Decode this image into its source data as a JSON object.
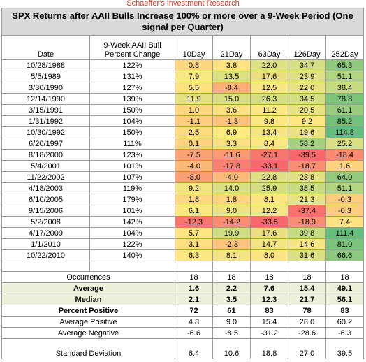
{
  "brand": "Schaeffer's Investment Research",
  "title": "SPX Returns after AAII Bulls Increase 100% or more over a 9-Week Period (One signal per Quarter)",
  "headers": {
    "date": "Date",
    "pct": "9-Week AAII Bull Percent Change",
    "cols": [
      "10Day",
      "21Day",
      "63Day",
      "126Day",
      "252Day"
    ]
  },
  "rows": [
    {
      "date": "10/28/1988",
      "pct": "122%",
      "v": [
        "0.8",
        "3.8",
        "22.0",
        "34.7",
        "65.3"
      ],
      "c": [
        "#fed580",
        "#fee282",
        "#dde083",
        "#d5de82",
        "#8ec97e"
      ]
    },
    {
      "date": "5/5/1989",
      "pct": "131%",
      "v": [
        "7.9",
        "13.5",
        "17.6",
        "23.9",
        "51.1"
      ],
      "c": [
        "#f8e984",
        "#dde081",
        "#ecdf82",
        "#e0e084",
        "#b2d680"
      ]
    },
    {
      "date": "3/30/1990",
      "pct": "127%",
      "v": [
        "5.5",
        "-8.4",
        "12.5",
        "22.0",
        "38.4"
      ],
      "c": [
        "#fee282",
        "#fcae76",
        "#f8e684",
        "#e8e283",
        "#c7dc81"
      ]
    },
    {
      "date": "12/14/1990",
      "pct": "139%",
      "v": [
        "11.9",
        "15.0",
        "26.3",
        "34.5",
        "78.8"
      ],
      "c": [
        "#e5e183",
        "#d9de82",
        "#d6de82",
        "#d6de82",
        "#7ec57c"
      ]
    },
    {
      "date": "3/15/1991",
      "pct": "150%",
      "v": [
        "1.0",
        "3.6",
        "11.2",
        "20.5",
        "61.1"
      ],
      "c": [
        "#fed680",
        "#fee082",
        "#fde783",
        "#ebe283",
        "#99cc7e"
      ]
    },
    {
      "date": "1/31/1992",
      "pct": "104%",
      "v": [
        "-1.1",
        "-1.3",
        "9.8",
        "9.2",
        "85.2"
      ],
      "c": [
        "#fdcc7e",
        "#fdc27b",
        "#fde783",
        "#fde683",
        "#72c27b"
      ]
    },
    {
      "date": "10/30/1992",
      "pct": "150%",
      "v": [
        "2.5",
        "6.9",
        "13.4",
        "19.6",
        "114.8"
      ],
      "c": [
        "#fedb81",
        "#fee983",
        "#f5e484",
        "#ede283",
        "#63be7b"
      ]
    },
    {
      "date": "6/20/1997",
      "pct": "111%",
      "v": [
        "0.1",
        "3.3",
        "8.4",
        "58.2",
        "25.2"
      ],
      "c": [
        "#fed280",
        "#fede82",
        "#fee583",
        "#a4d17f",
        "#d9df82"
      ]
    },
    {
      "date": "8/18/2000",
      "pct": "123%",
      "v": [
        "-7.5",
        "-11.6",
        "-27.1",
        "-39.5",
        "-18.4"
      ],
      "c": [
        "#fca375",
        "#fb9a73",
        "#f8776d",
        "#f8696b",
        "#fa8b70"
      ]
    },
    {
      "date": "5/4/2001",
      "pct": "101%",
      "v": [
        "-4.0",
        "-17.8",
        "-33.1",
        "-18.7",
        "1.6"
      ],
      "c": [
        "#fcb878",
        "#f9806f",
        "#f8696b",
        "#fa8e71",
        "#fed37f"
      ]
    },
    {
      "date": "11/22/2002",
      "pct": "107%",
      "v": [
        "-8.0",
        "-4.0",
        "22.8",
        "23.8",
        "64.0"
      ],
      "c": [
        "#fb9f74",
        "#fdbb7a",
        "#dfe083",
        "#e1e083",
        "#94ca7e"
      ]
    },
    {
      "date": "4/18/2003",
      "pct": "119%",
      "v": [
        "9.2",
        "14.0",
        "25.9",
        "38.5",
        "51.1"
      ],
      "c": [
        "#f2e483",
        "#dadf82",
        "#d6de82",
        "#c7dc81",
        "#b2d680"
      ]
    },
    {
      "date": "6/10/2005",
      "pct": "179%",
      "v": [
        "1.8",
        "1.8",
        "8.1",
        "21.3",
        "-0.3"
      ],
      "c": [
        "#fed880",
        "#fed47f",
        "#fde483",
        "#ebe283",
        "#fdcc7e"
      ]
    },
    {
      "date": "9/15/2006",
      "pct": "101%",
      "v": [
        "6.1",
        "9.0",
        "12.2",
        "-37.4",
        "-0.3"
      ],
      "c": [
        "#fce683",
        "#f0e283",
        "#f8e684",
        "#f8716d",
        "#fdcc7e"
      ]
    },
    {
      "date": "5/2/2008",
      "pct": "142%",
      "v": [
        "-12.3",
        "-14.2",
        "-33.5",
        "-18.9",
        "7.4"
      ],
      "c": [
        "#f8776d",
        "#f98c71",
        "#f8696b",
        "#fa8e71",
        "#fee182"
      ]
    },
    {
      "date": "4/17/2009",
      "pct": "104%",
      "v": [
        "5.7",
        "19.9",
        "17.6",
        "39.8",
        "111.4"
      ],
      "c": [
        "#fee482",
        "#cedc82",
        "#ecdf82",
        "#c4db81",
        "#65bf7c"
      ]
    },
    {
      "date": "1/1/2010",
      "pct": "122%",
      "v": [
        "3.1",
        "-2.3",
        "14.7",
        "14.6",
        "81.0"
      ],
      "c": [
        "#fede82",
        "#fdc27b",
        "#f2e383",
        "#f4e484",
        "#7ac47c"
      ]
    },
    {
      "date": "10/22/2010",
      "pct": "140%",
      "v": [
        "6.3",
        "8.1",
        "8.0",
        "31.6",
        "66.6"
      ],
      "c": [
        "#fbe683",
        "#f3e383",
        "#fde483",
        "#dadf82",
        "#8cc87e"
      ]
    }
  ],
  "summary": [
    {
      "label": "Occurrences",
      "v": [
        "18",
        "18",
        "18",
        "18",
        "18"
      ],
      "bold": false,
      "shade": false,
      "dev": false
    },
    {
      "label": "Average",
      "v": [
        "1.6",
        "2.2",
        "7.6",
        "15.4",
        "49.1"
      ],
      "bold": true,
      "shade": true,
      "dev": false
    },
    {
      "label": "Median",
      "v": [
        "2.1",
        "3.5",
        "12.3",
        "21.7",
        "56.1"
      ],
      "bold": true,
      "shade": true,
      "dev": false
    },
    {
      "label": "Percent Positive",
      "v": [
        "72",
        "61",
        "83",
        "78",
        "83"
      ],
      "bold": true,
      "shade": false,
      "dev": false
    },
    {
      "label": "Average Positive",
      "v": [
        "4.8",
        "9.0",
        "15.4",
        "28.0",
        "60.2"
      ],
      "bold": false,
      "shade": false,
      "dev": false
    },
    {
      "label": "Average Negative",
      "v": [
        "-6.6",
        "-8.5",
        "-31.2",
        "-28.6",
        "-6.3"
      ],
      "bold": false,
      "shade": false,
      "dev": false
    },
    {
      "label": "Standard Deviation",
      "v": [
        "6.4",
        "10.6",
        "18.8",
        "27.0",
        "39.5"
      ],
      "bold": false,
      "shade": false,
      "dev": true
    }
  ]
}
